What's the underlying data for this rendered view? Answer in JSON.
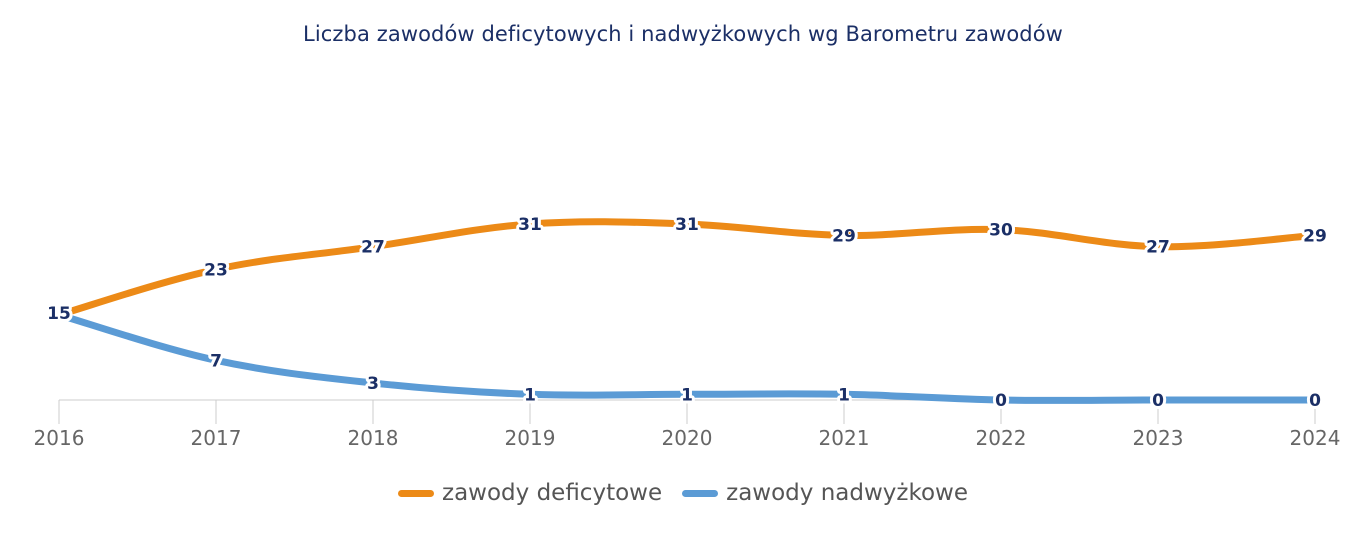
{
  "chart_data": {
    "type": "line",
    "title": "Liczba zawodów deficytowych i nadwyżkowych wg Barometru zawodów",
    "xlabel": "",
    "ylabel": "",
    "categories": [
      "2016",
      "2017",
      "2018",
      "2019",
      "2020",
      "2021",
      "2022",
      "2023",
      "2024"
    ],
    "ylim": [
      0,
      31
    ],
    "grid": false,
    "legend_position": "bottom",
    "series": [
      {
        "name": "zawody deficytowe",
        "color": "#ec8a17",
        "values": [
          15,
          23,
          27,
          31,
          31,
          29,
          30,
          27,
          29
        ]
      },
      {
        "name": "zawody nadwyżkowe",
        "color": "#5b9bd5",
        "values": [
          15,
          7,
          3,
          1,
          1,
          1,
          0,
          0,
          0
        ]
      }
    ],
    "label_color": "#1b2f66",
    "axis_color": "#cccccc"
  }
}
